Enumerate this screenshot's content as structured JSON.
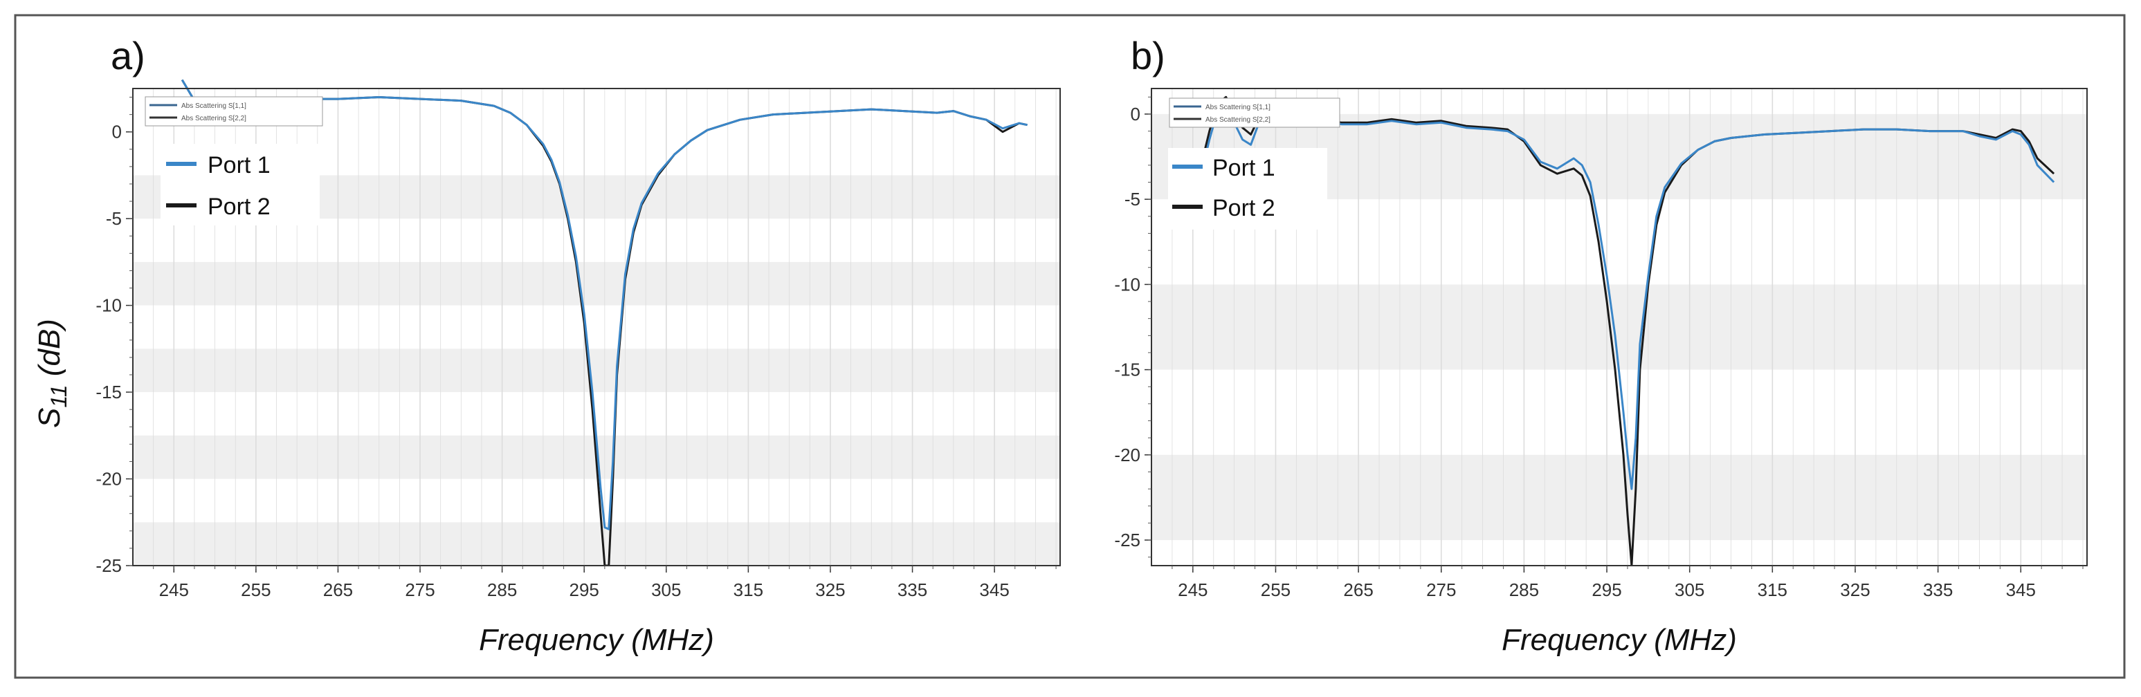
{
  "figure": {
    "ylabel_main": "S",
    "ylabel_sub": "11",
    "ylabel_unit": " (dB)"
  },
  "legend": {
    "port1": "Port 1",
    "port2": "Port 2"
  },
  "colors": {
    "port1": "#3a86c8",
    "port2": "#1a1a1a",
    "band": "#efefef",
    "grid": "#dcdcdc"
  },
  "chart_data": [
    {
      "type": "line",
      "panel_label": "a)",
      "xlabel": "Frequency (MHz)",
      "ylabel": "S11 (dB)",
      "xlim": [
        240,
        353
      ],
      "ylim": [
        -25,
        2.5
      ],
      "xticks": [
        245,
        255,
        265,
        275,
        285,
        295,
        305,
        315,
        325,
        335,
        345
      ],
      "yticks": [
        0,
        -5,
        -10,
        -15,
        -20,
        -25
      ],
      "bands": [
        [
          -2.5,
          -5
        ],
        [
          -7.5,
          -10
        ],
        [
          -12.5,
          -15
        ],
        [
          -17.5,
          -20
        ],
        [
          -22.5,
          -25
        ]
      ],
      "inner_legend": [
        "Abs Scattering S[1,1]",
        "Abs Scattering S[2,2]"
      ],
      "series": [
        {
          "name": "Port 1",
          "x": [
            246,
            248,
            250,
            253,
            256,
            260,
            265,
            270,
            275,
            280,
            284,
            286,
            288,
            290,
            291,
            292,
            293,
            294,
            295,
            296,
            297,
            297.5,
            298,
            298.5,
            299,
            300,
            301,
            302,
            304,
            306,
            308,
            310,
            314,
            318,
            322,
            326,
            330,
            334,
            338,
            340,
            342,
            344,
            346,
            348,
            349
          ],
          "y": [
            3.0,
            1.4,
            1.6,
            1.9,
            1.8,
            1.9,
            1.9,
            2.0,
            1.9,
            1.8,
            1.5,
            1.1,
            0.4,
            -0.7,
            -1.6,
            -2.9,
            -4.8,
            -7.2,
            -10.5,
            -15.0,
            -20.5,
            -22.8,
            -22.9,
            -19.0,
            -13.5,
            -8.2,
            -5.6,
            -4.1,
            -2.4,
            -1.3,
            -0.5,
            0.1,
            0.7,
            1.0,
            1.1,
            1.2,
            1.3,
            1.2,
            1.1,
            1.2,
            0.9,
            0.7,
            0.2,
            0.5,
            0.4
          ]
        },
        {
          "name": "Port 2",
          "x": [
            246,
            248,
            250,
            253,
            256,
            260,
            265,
            270,
            275,
            280,
            284,
            286,
            288,
            290,
            291,
            292,
            293,
            294,
            295,
            296,
            297,
            297.5,
            298,
            298.5,
            299,
            300,
            301,
            302,
            304,
            306,
            308,
            310,
            314,
            318,
            322,
            326,
            330,
            334,
            338,
            340,
            342,
            344,
            346,
            348,
            349
          ],
          "y": [
            3.0,
            1.4,
            1.6,
            1.9,
            1.8,
            1.9,
            1.9,
            2.0,
            1.9,
            1.8,
            1.5,
            1.1,
            0.4,
            -0.8,
            -1.7,
            -3.0,
            -5.0,
            -7.5,
            -11.0,
            -16.0,
            -22.0,
            -25.0,
            -25.0,
            -20.0,
            -14.0,
            -8.5,
            -5.8,
            -4.2,
            -2.5,
            -1.3,
            -0.5,
            0.1,
            0.7,
            1.0,
            1.1,
            1.2,
            1.3,
            1.2,
            1.1,
            1.2,
            0.9,
            0.7,
            0.0,
            0.5,
            0.4
          ]
        }
      ]
    },
    {
      "type": "line",
      "panel_label": "b)",
      "xlabel": "Frequency (MHz)",
      "ylabel": "",
      "xlim": [
        240,
        353
      ],
      "ylim": [
        -26.5,
        1.5
      ],
      "xticks": [
        245,
        255,
        265,
        275,
        285,
        295,
        305,
        315,
        325,
        335,
        345
      ],
      "yticks": [
        0,
        -5,
        -10,
        -15,
        -20,
        -25
      ],
      "bands": [
        [
          0,
          -5
        ],
        [
          -10,
          -15
        ],
        [
          -20,
          -25
        ]
      ],
      "inner_legend": [
        "Abs Scattering S[1,1]",
        "Abs Scattering S[2,2]"
      ],
      "series": [
        {
          "name": "Port 1",
          "x": [
            246,
            247,
            248,
            249,
            250,
            251,
            252,
            253,
            255,
            257,
            260,
            263,
            266,
            269,
            272,
            275,
            278,
            281,
            283,
            285,
            287,
            289,
            291,
            292,
            293,
            294,
            295,
            296,
            297,
            297.5,
            298,
            298.5,
            299,
            300,
            301,
            302,
            304,
            306,
            308,
            310,
            314,
            318,
            322,
            326,
            330,
            334,
            338,
            340,
            342,
            344,
            345,
            346,
            347,
            349
          ],
          "y": [
            -3.5,
            -1.5,
            0.2,
            0.7,
            -0.5,
            -1.5,
            -1.8,
            -0.5,
            0.0,
            -0.5,
            -0.4,
            -0.6,
            -0.6,
            -0.4,
            -0.6,
            -0.5,
            -0.8,
            -0.9,
            -1.0,
            -1.5,
            -2.8,
            -3.2,
            -2.6,
            -3.0,
            -4.0,
            -6.5,
            -9.5,
            -13.0,
            -17.5,
            -20.0,
            -22.0,
            -19.0,
            -13.5,
            -9.5,
            -6.0,
            -4.3,
            -2.9,
            -2.1,
            -1.6,
            -1.4,
            -1.2,
            -1.1,
            -1.0,
            -0.9,
            -0.9,
            -1.0,
            -1.0,
            -1.3,
            -1.5,
            -1.0,
            -1.2,
            -1.8,
            -3.0,
            -4.0
          ]
        },
        {
          "name": "Port 2",
          "x": [
            246,
            247,
            248,
            249,
            250,
            251,
            252,
            253,
            255,
            257,
            260,
            263,
            266,
            269,
            272,
            275,
            278,
            281,
            283,
            285,
            287,
            289,
            291,
            292,
            293,
            294,
            295,
            296,
            297,
            297.5,
            298,
            298.5,
            299,
            300,
            301,
            302,
            304,
            306,
            308,
            310,
            314,
            318,
            322,
            326,
            330,
            334,
            338,
            340,
            342,
            344,
            345,
            346,
            347,
            349
          ],
          "y": [
            -3.0,
            -1.0,
            0.6,
            1.0,
            0.0,
            -0.8,
            -1.2,
            -0.2,
            0.2,
            -0.3,
            -0.3,
            -0.5,
            -0.5,
            -0.3,
            -0.5,
            -0.4,
            -0.7,
            -0.8,
            -0.9,
            -1.6,
            -3.0,
            -3.5,
            -3.2,
            -3.6,
            -4.8,
            -7.5,
            -11.0,
            -15.0,
            -20.0,
            -23.5,
            -26.5,
            -22.0,
            -15.0,
            -10.0,
            -6.5,
            -4.6,
            -3.0,
            -2.1,
            -1.6,
            -1.4,
            -1.2,
            -1.1,
            -1.0,
            -0.9,
            -0.9,
            -1.0,
            -1.0,
            -1.2,
            -1.4,
            -0.9,
            -1.0,
            -1.6,
            -2.6,
            -3.5
          ]
        }
      ]
    }
  ]
}
